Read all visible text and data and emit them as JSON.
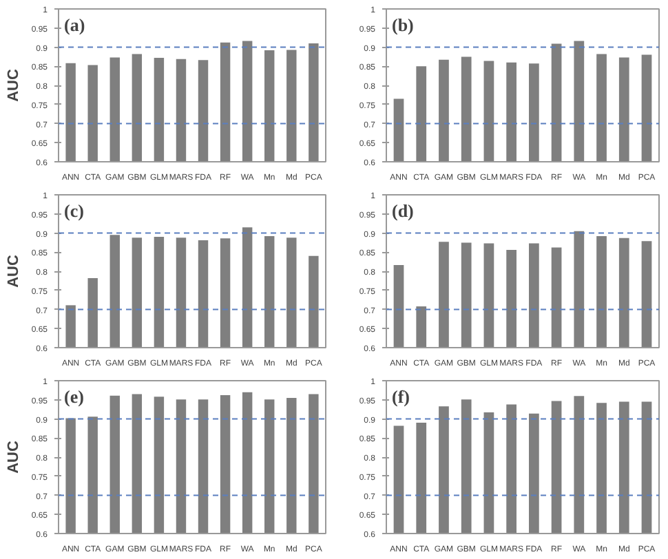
{
  "chart_data": [
    {
      "type": "bar",
      "title": "(a)",
      "ylabel": "AUC",
      "categories": [
        "ANN",
        "CTA",
        "GAM",
        "GBM",
        "GLM",
        "MARS",
        "FDA",
        "RF",
        "WA",
        "Mn",
        "Md",
        "PCA"
      ],
      "values": [
        0.858,
        0.853,
        0.873,
        0.882,
        0.872,
        0.869,
        0.866,
        0.912,
        0.916,
        0.892,
        0.893,
        0.91
      ],
      "color": "#7f7f7f",
      "ylim": [
        0.6,
        1
      ],
      "yticks": [
        0.6,
        0.65,
        0.7,
        0.75,
        0.8,
        0.85,
        0.9,
        0.95,
        1
      ],
      "grid": false,
      "ref_lines": [
        {
          "axis": "y",
          "value": 0.7,
          "color": "#5b7fbf",
          "line_style": "dashed"
        },
        {
          "axis": "y",
          "value": 0.9,
          "color": "#5b7fbf",
          "line_style": "dashed"
        }
      ]
    },
    {
      "type": "bar",
      "title": "(b)",
      "categories": [
        "ANN",
        "CTA",
        "GAM",
        "GBM",
        "GLM",
        "MARS",
        "FDA",
        "RF",
        "WA",
        "Mn",
        "Md",
        "PCA"
      ],
      "values": [
        0.765,
        0.85,
        0.867,
        0.875,
        0.864,
        0.86,
        0.857,
        0.909,
        0.916,
        0.882,
        0.873,
        0.88
      ],
      "color": "#7f7f7f",
      "ylim": [
        0.6,
        1
      ],
      "yticks": [
        0.6,
        0.65,
        0.7,
        0.75,
        0.8,
        0.85,
        0.9,
        0.95,
        1
      ],
      "grid": false,
      "ref_lines": [
        {
          "axis": "y",
          "value": 0.7,
          "color": "#5b7fbf",
          "line_style": "dashed"
        },
        {
          "axis": "y",
          "value": 0.9,
          "color": "#5b7fbf",
          "line_style": "dashed"
        }
      ]
    },
    {
      "type": "bar",
      "title": "(c)",
      "ylabel": "AUC",
      "categories": [
        "ANN",
        "CTA",
        "GAM",
        "GBM",
        "GLM",
        "MARS",
        "FDA",
        "RF",
        "WA",
        "Mn",
        "Md",
        "PCA"
      ],
      "values": [
        0.711,
        0.782,
        0.895,
        0.888,
        0.89,
        0.888,
        0.881,
        0.886,
        0.915,
        0.892,
        0.888,
        0.84
      ],
      "color": "#7f7f7f",
      "ylim": [
        0.6,
        1
      ],
      "yticks": [
        0.6,
        0.65,
        0.7,
        0.75,
        0.8,
        0.85,
        0.9,
        0.95,
        1
      ],
      "grid": false,
      "ref_lines": [
        {
          "axis": "y",
          "value": 0.7,
          "color": "#5b7fbf",
          "line_style": "dashed"
        },
        {
          "axis": "y",
          "value": 0.9,
          "color": "#5b7fbf",
          "line_style": "dashed"
        }
      ]
    },
    {
      "type": "bar",
      "title": "(d)",
      "categories": [
        "ANN",
        "CTA",
        "GAM",
        "GBM",
        "GLM",
        "MARS",
        "FDA",
        "RF",
        "WA",
        "Mn",
        "Md",
        "PCA"
      ],
      "values": [
        0.816,
        0.708,
        0.877,
        0.875,
        0.873,
        0.856,
        0.873,
        0.862,
        0.905,
        0.892,
        0.887,
        0.879
      ],
      "color": "#7f7f7f",
      "ylim": [
        0.6,
        1
      ],
      "yticks": [
        0.6,
        0.65,
        0.7,
        0.75,
        0.8,
        0.85,
        0.9,
        0.95,
        1
      ],
      "grid": false,
      "ref_lines": [
        {
          "axis": "y",
          "value": 0.7,
          "color": "#5b7fbf",
          "line_style": "dashed"
        },
        {
          "axis": "y",
          "value": 0.9,
          "color": "#5b7fbf",
          "line_style": "dashed"
        }
      ]
    },
    {
      "type": "bar",
      "title": "(e)",
      "ylabel": "AUC",
      "categories": [
        "ANN",
        "CTA",
        "GAM",
        "GBM",
        "GLM",
        "MARS",
        "FDA",
        "RF",
        "WA",
        "Mn",
        "Md",
        "PCA"
      ],
      "values": [
        0.902,
        0.906,
        0.961,
        0.965,
        0.958,
        0.951,
        0.951,
        0.962,
        0.97,
        0.951,
        0.955,
        0.965
      ],
      "color": "#7f7f7f",
      "ylim": [
        0.6,
        1
      ],
      "yticks": [
        0.6,
        0.65,
        0.7,
        0.75,
        0.8,
        0.85,
        0.9,
        0.95,
        1
      ],
      "grid": false,
      "ref_lines": [
        {
          "axis": "y",
          "value": 0.7,
          "color": "#5b7fbf",
          "line_style": "dashed"
        },
        {
          "axis": "y",
          "value": 0.9,
          "color": "#5b7fbf",
          "line_style": "dashed"
        }
      ]
    },
    {
      "type": "bar",
      "title": "(f)",
      "categories": [
        "ANN",
        "CTA",
        "GAM",
        "GBM",
        "GLM",
        "MARS",
        "FDA",
        "RF",
        "WA",
        "Mn",
        "Md",
        "PCA"
      ],
      "values": [
        0.882,
        0.89,
        0.933,
        0.951,
        0.917,
        0.938,
        0.914,
        0.947,
        0.96,
        0.942,
        0.945,
        0.945
      ],
      "color": "#7f7f7f",
      "ylim": [
        0.6,
        1
      ],
      "yticks": [
        0.6,
        0.65,
        0.7,
        0.75,
        0.8,
        0.85,
        0.9,
        0.95,
        1
      ],
      "grid": false,
      "ref_lines": [
        {
          "axis": "y",
          "value": 0.7,
          "color": "#5b7fbf",
          "line_style": "dashed"
        },
        {
          "axis": "y",
          "value": 0.9,
          "color": "#5b7fbf",
          "line_style": "dashed"
        }
      ]
    }
  ]
}
